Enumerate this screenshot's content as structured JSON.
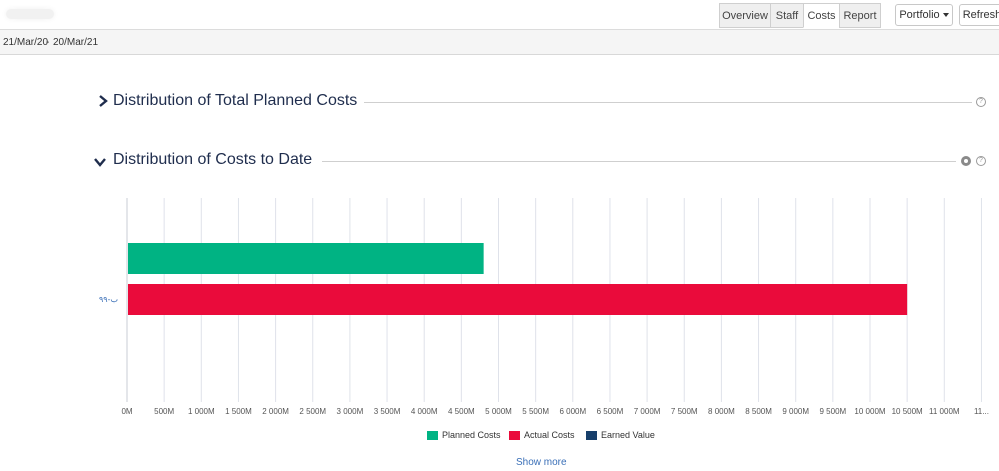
{
  "tabs": [
    {
      "label": "Overview",
      "active": false
    },
    {
      "label": "Staff",
      "active": false
    },
    {
      "label": "Costs",
      "active": true
    },
    {
      "label": "Report",
      "active": false
    }
  ],
  "toolbar": {
    "portfolio_label": "Portfolio",
    "refresh_label": "Refresh"
  },
  "date_range": {
    "from": "21/Mar/20",
    "separator": "-",
    "to": "20/Mar/21"
  },
  "sections": {
    "planned": {
      "title": "Distribution of Total Planned Costs",
      "expanded": false,
      "icons": [
        "help-icon"
      ]
    },
    "to_date": {
      "title": "Distribution of Costs to Date",
      "expanded": true,
      "icons": [
        "settings-icon",
        "help-icon"
      ]
    }
  },
  "chart_data": {
    "type": "bar",
    "orientation": "horizontal",
    "categories": [
      "۹۹-ب"
    ],
    "series": [
      {
        "name": "Planned Costs",
        "values": [
          4800
        ],
        "color": "#00b383"
      },
      {
        "name": "Actual Costs",
        "values": [
          10500
        ],
        "color": "#ea0b3b"
      },
      {
        "name": "Earned Value",
        "values": [
          0
        ],
        "color": "#173f6b"
      }
    ],
    "xlim": [
      0,
      11000
    ],
    "x_ticks": [
      "0M",
      "500M",
      "1 000M",
      "1 500M",
      "2 000M",
      "2 500M",
      "3 000M",
      "3 500M",
      "4 000M",
      "4 500M",
      "5 000M",
      "5 500M",
      "6 000M",
      "6 500M",
      "7 000M",
      "7 500M",
      "8 000M",
      "8 500M",
      "9 000M",
      "9 500M",
      "10 000M",
      "10 500M",
      "11 000M",
      "11..."
    ],
    "grid": true,
    "legend_placement": "bottom-center"
  },
  "footer": {
    "show_more_label": "Show more"
  }
}
